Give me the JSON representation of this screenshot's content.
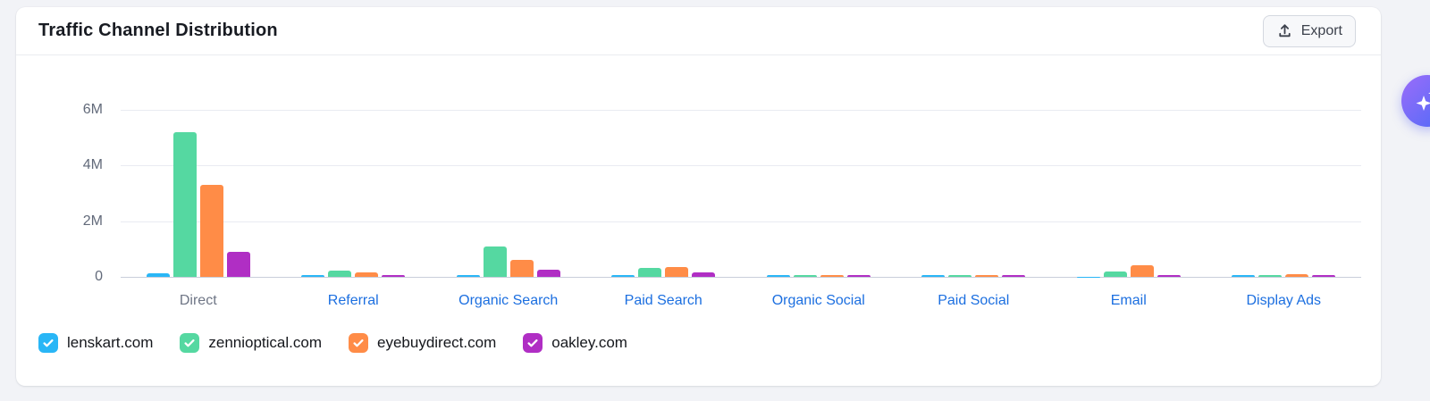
{
  "header": {
    "title": "Traffic Channel Distribution",
    "export_label": "Export",
    "export_icon": "upload-icon"
  },
  "colors": {
    "x_label_link": "#1C6FE0",
    "x_label_muted": "#6E7585",
    "ai_button_gradient": [
      "#9B6CF9",
      "#4D6BF8"
    ]
  },
  "ai_button": {
    "icon": "sparkles-icon"
  },
  "chart_data": {
    "type": "bar",
    "title": "Traffic Channel Distribution",
    "categories": [
      {
        "label": "Direct",
        "link": false
      },
      {
        "label": "Referral",
        "link": true
      },
      {
        "label": "Organic Search",
        "link": true
      },
      {
        "label": "Paid Search",
        "link": true
      },
      {
        "label": "Organic Social",
        "link": true
      },
      {
        "label": "Paid Social",
        "link": true
      },
      {
        "label": "Email",
        "link": true
      },
      {
        "label": "Display Ads",
        "link": true
      }
    ],
    "series": [
      {
        "name": "lenskart.com",
        "color": "#29B6F6",
        "checked": true,
        "values": [
          130000,
          60000,
          80000,
          70000,
          80000,
          80000,
          10000,
          80000
        ]
      },
      {
        "name": "zennioptical.com",
        "color": "#55D8A1",
        "checked": true,
        "values": [
          5200000,
          220000,
          1100000,
          320000,
          60000,
          70000,
          180000,
          80000
        ]
      },
      {
        "name": "eyebuydirect.com",
        "color": "#FF8C47",
        "checked": true,
        "values": [
          3300000,
          150000,
          620000,
          360000,
          60000,
          80000,
          420000,
          100000
        ]
      },
      {
        "name": "oakley.com",
        "color": "#B02EC4",
        "checked": true,
        "values": [
          900000,
          80000,
          250000,
          170000,
          60000,
          60000,
          50000,
          70000
        ]
      }
    ],
    "y_ticks": [
      {
        "label": "6M",
        "value": 6000000
      },
      {
        "label": "4M",
        "value": 4000000
      },
      {
        "label": "2M",
        "value": 2000000
      },
      {
        "label": "0",
        "value": 0
      }
    ],
    "ylim": [
      0,
      6400000
    ],
    "xlabel": "",
    "ylabel": "",
    "grid": "horizontal",
    "legend_position": "bottom"
  }
}
